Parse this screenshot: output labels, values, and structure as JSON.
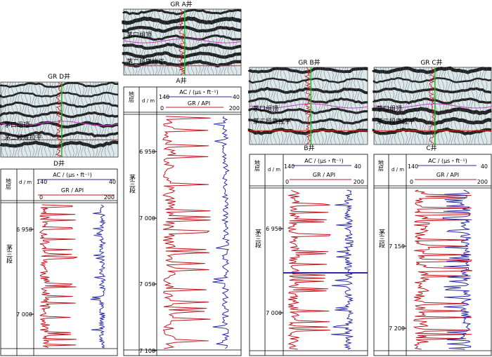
{
  "figure": {
    "wells": [
      {
        "id": "D",
        "seismic_label": "GR D井",
        "well_name": "D井",
        "horizon_top": "茅口组顶",
        "horizon_base": "茅二段底拉平",
        "ac_label": "AC / (μs・ft⁻¹)",
        "ac_left": "140",
        "ac_right": "40",
        "gr_label": "GR / API",
        "gr_left": "0",
        "gr_right": "200",
        "strat_header": "地层",
        "depth_header": "d / m",
        "formation": "茅三段",
        "depth_ticks": [
          {
            "value": 6950,
            "label": "6 950"
          },
          {
            "value": 7000,
            "label": "7 000"
          }
        ]
      },
      {
        "id": "A",
        "seismic_label": "GR A井",
        "well_name": "A井",
        "horizon_top": "茅口组顶",
        "horizon_base": "茅二段底拉平",
        "ac_label": "AC / (μs・ft⁻¹)",
        "ac_left": "140",
        "ac_right": "40",
        "gr_label": "GR / API",
        "gr_left": "0",
        "gr_right": "200",
        "strat_header": "地层",
        "depth_header": "d / m",
        "formation": "茅三段",
        "depth_ticks": [
          {
            "value": 6950,
            "label": "6 950"
          },
          {
            "value": 7000,
            "label": "7 000"
          },
          {
            "value": 7050,
            "label": "7 050"
          },
          {
            "value": 7100,
            "label": "7 100"
          }
        ]
      },
      {
        "id": "B",
        "seismic_label": "GR B井",
        "well_name": "B井",
        "horizon_top": "茅口组顶",
        "horizon_base": "茅二段底拉平",
        "ac_label": "AC / (μs・ft⁻¹)",
        "ac_left": "140",
        "ac_right": "40",
        "gr_label": "GR / API",
        "gr_left": "0",
        "gr_right": "200",
        "strat_header": "地层",
        "depth_header": "d / m",
        "formation": "茅三段",
        "depth_ticks": [
          {
            "value": 6950,
            "label": "6 950"
          },
          {
            "value": 7000,
            "label": "7 000"
          }
        ]
      },
      {
        "id": "C",
        "seismic_label": "GR C井",
        "well_name": "C井",
        "horizon_top": "茅口组顶",
        "horizon_base": "茅二段底拉平",
        "ac_label": "AC / (μs・ft⁻¹)",
        "ac_left": "140",
        "ac_right": "40",
        "gr_label": "GR / API",
        "gr_left": "0",
        "gr_right": "200",
        "strat_header": "地层",
        "depth_header": "d / m",
        "formation": "茅三段",
        "depth_ticks": [
          {
            "value": 7150,
            "label": "7 150"
          },
          {
            "value": 7200,
            "label": "7 200"
          }
        ]
      }
    ],
    "colors": {
      "gr_curve": "#c0161e",
      "ac_curve": "#2a2aa8",
      "horizon_top_line": "#c040c0",
      "horizon_base_line": "#e02020",
      "well_trace": "#22bb22",
      "seismic_bg": "#dce8ea"
    }
  }
}
